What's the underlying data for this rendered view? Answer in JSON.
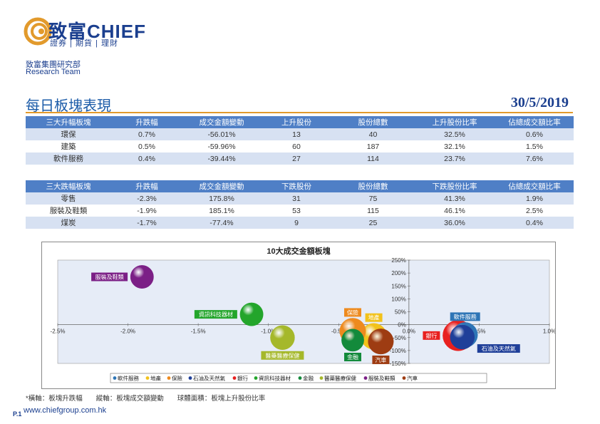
{
  "header": {
    "brand": "致富CHIEF",
    "tagline": "證券 | 期貨 | 理財",
    "dept_cn": "致富集團研究部",
    "dept_en": "Research Team",
    "title": "每日板塊表現",
    "date": "30/5/2019",
    "colors": {
      "brand_blue": "#1b3f8f",
      "accent_orange": "#e29a2c",
      "table_header": "#4f7fc6"
    }
  },
  "top_table": {
    "columns": [
      "三大升幅板塊",
      "升跌幅",
      "成交金額變動",
      "上升股份",
      "股份總數",
      "上升股份比率",
      "佔總成交額比率"
    ],
    "rows": [
      [
        "環保",
        "0.7%",
        "-56.01%",
        "13",
        "40",
        "32.5%",
        "0.6%"
      ],
      [
        "建築",
        "0.5%",
        "-59.96%",
        "60",
        "187",
        "32.1%",
        "1.5%"
      ],
      [
        "軟件服務",
        "0.4%",
        "-39.44%",
        "27",
        "114",
        "23.7%",
        "7.6%"
      ]
    ]
  },
  "bottom_table": {
    "columns": [
      "三大跌幅板塊",
      "升跌幅",
      "成交金額變動",
      "下跌股份",
      "股份總數",
      "下跌股份比率",
      "佔總成交額比率"
    ],
    "rows": [
      [
        "零售",
        "-2.3%",
        "175.8%",
        "31",
        "75",
        "41.3%",
        "1.9%"
      ],
      [
        "服裝及鞋類",
        "-1.9%",
        "185.1%",
        "53",
        "115",
        "46.1%",
        "2.5%"
      ],
      [
        "煤炭",
        "-1.7%",
        "-77.4%",
        "9",
        "25",
        "36.0%",
        "0.4%"
      ]
    ]
  },
  "chart_data": {
    "type": "scatter",
    "title": "10大成交金額板塊",
    "xlim": [
      -2.5,
      1.0
    ],
    "ylim": [
      -150,
      250
    ],
    "x_ticks": [
      "-2.5%",
      "-2.0%",
      "-1.5%",
      "-1.0%",
      "-0.5%",
      "0.0%",
      "0.5%",
      "1.0%"
    ],
    "y_ticks": [
      "250%",
      "200%",
      "150%",
      "100%",
      "50%",
      "0%",
      "-50%",
      "-100%",
      "-150%"
    ],
    "series": [
      {
        "name": "軟件服務",
        "x": 0.4,
        "y": -39.44,
        "size": 27,
        "color": "#2e75b6"
      },
      {
        "name": "地產",
        "x": -0.25,
        "y": -45,
        "size": 30,
        "color": "#f2c21b"
      },
      {
        "name": "保險",
        "x": -0.4,
        "y": -25,
        "size": 30,
        "color": "#ee8a1e"
      },
      {
        "name": "石油及天然氣",
        "x": 0.38,
        "y": -48,
        "size": 25,
        "color": "#1f3f99"
      },
      {
        "name": "銀行",
        "x": 0.35,
        "y": -42,
        "size": 45,
        "color": "#e8201f"
      },
      {
        "name": "資訊科技器材",
        "x": -1.12,
        "y": 40,
        "size": 22,
        "color": "#23a52b"
      },
      {
        "name": "金融",
        "x": -0.4,
        "y": -60,
        "size": 20,
        "color": "#138a3b"
      },
      {
        "name": "醫藥醫療保健",
        "x": -0.9,
        "y": -50,
        "size": 25,
        "color": "#a5b82a"
      },
      {
        "name": "服裝及鞋類",
        "x": -1.9,
        "y": 185.1,
        "size": 22,
        "color": "#7b1f86"
      },
      {
        "name": "汽車",
        "x": -0.2,
        "y": -65,
        "size": 28,
        "color": "#9e3c12"
      }
    ],
    "label_positions": {
      "服裝及鞋類": "left",
      "資訊科技器材": "left",
      "保險": "above",
      "地產": "above",
      "軟件服務": "above",
      "銀行": "left",
      "石油及天然氣": "right",
      "醫藥醫療保健": "below",
      "金融": "below",
      "汽車": "below"
    },
    "label_colors": {
      "服裝及鞋類": "#7b1f86",
      "資訊科技器材": "#23a52b",
      "保險": "#ee8a1e",
      "地產": "#f2c21b",
      "軟件服務": "#2e75b6",
      "銀行": "#e8201f",
      "石油及天然氣": "#1f3f99",
      "醫藥醫療保健": "#a5b82a",
      "金融": "#138a3b",
      "汽車": "#9e3c12"
    },
    "legend": {
      "placement": "bottom",
      "items": [
        "軟件服務",
        "地產",
        "保險",
        "石油及天然氣",
        "銀行",
        "資訊科技器材",
        "金融",
        "醫藥醫療保健",
        "服裝及鞋類",
        "汽車"
      ]
    }
  },
  "footer": {
    "note": "*橫軸：板塊升跌幅　　縱軸：板塊成交額變動　　球體面積：板塊上升股份比率",
    "url": "www.chiefgroup.com.hk",
    "page": "P.1"
  }
}
